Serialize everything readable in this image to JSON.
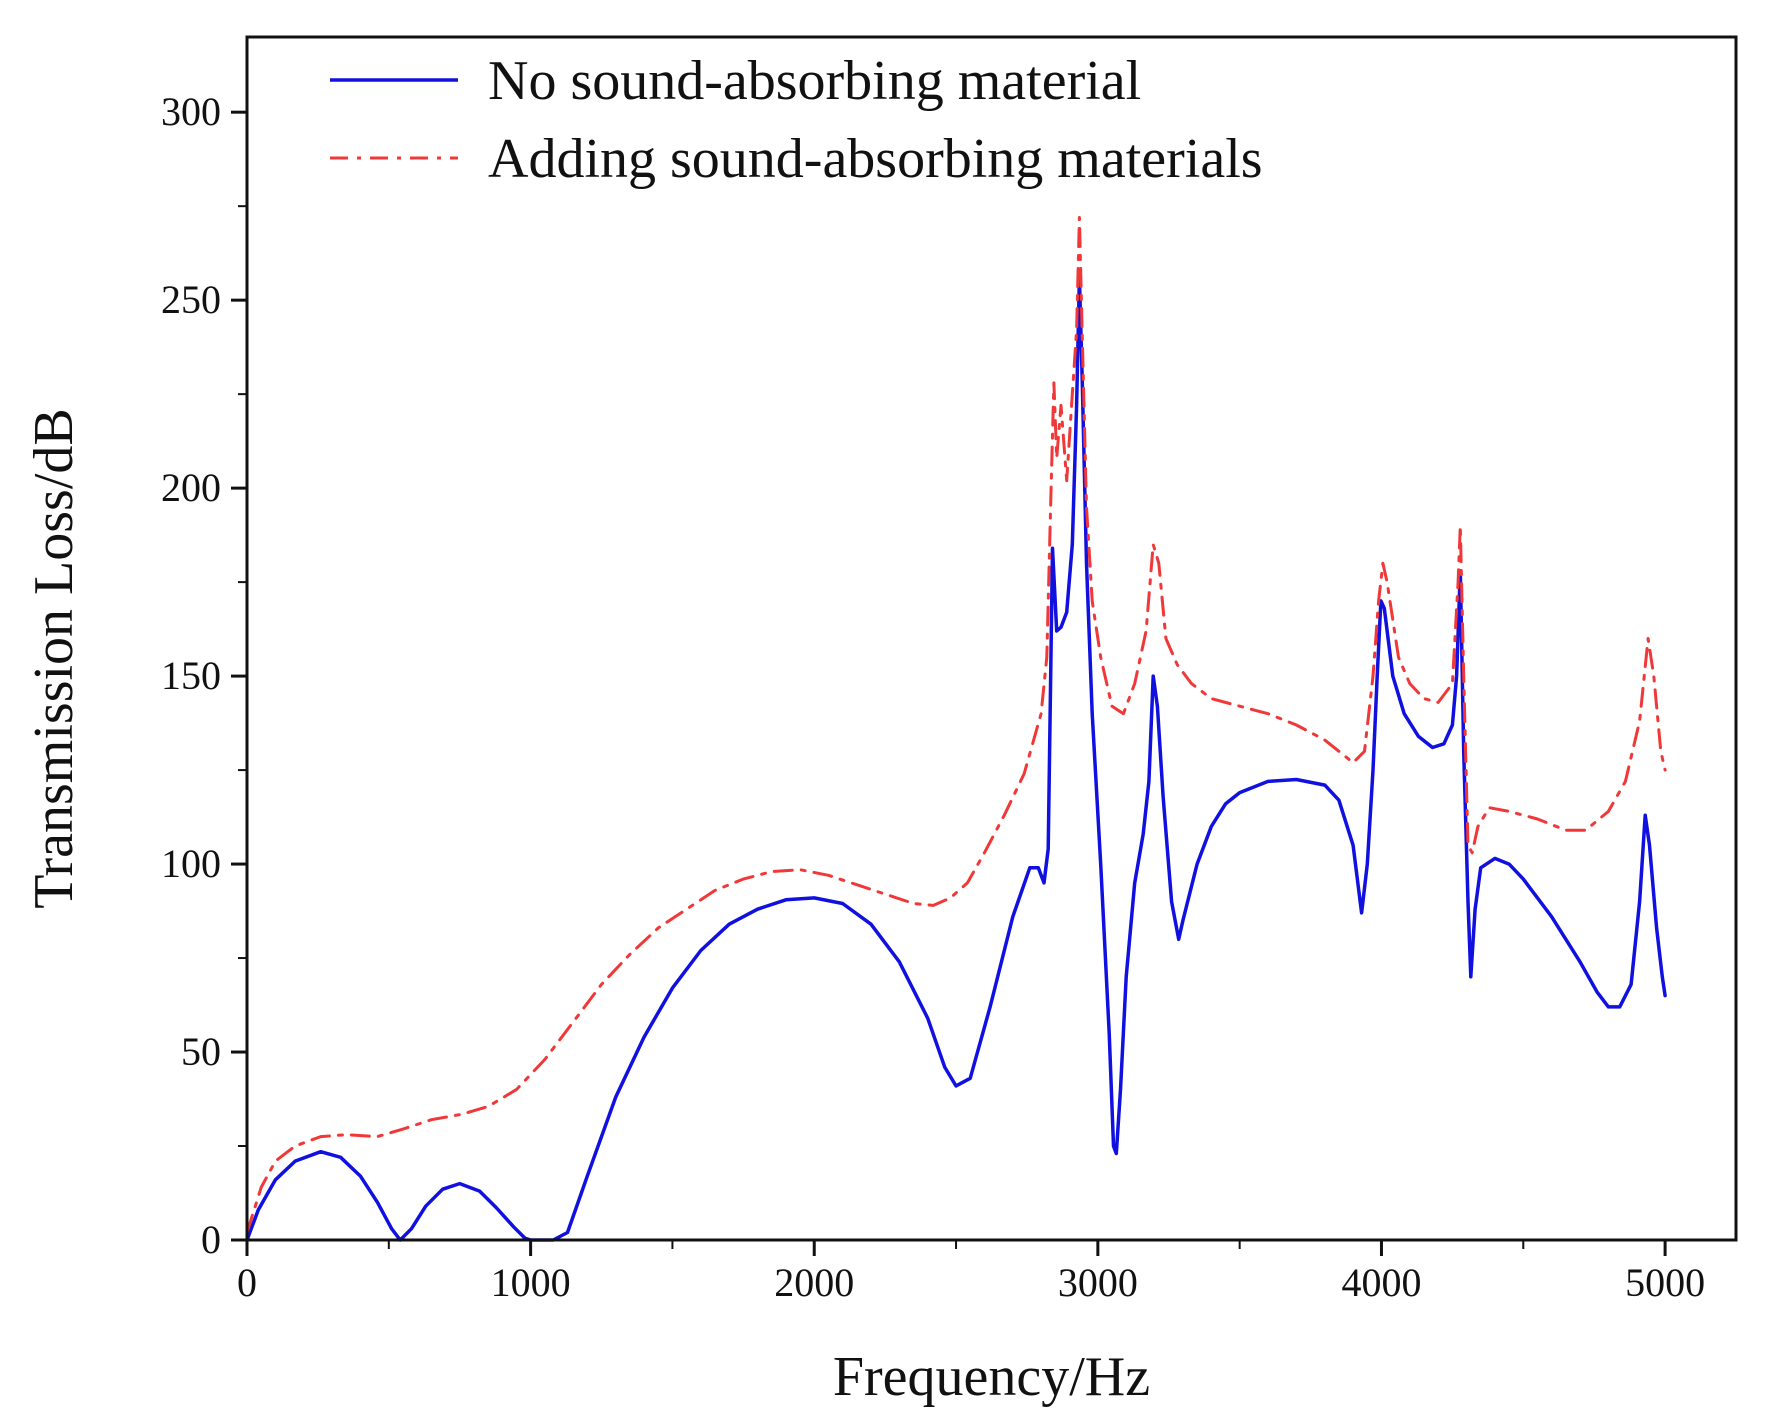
{
  "chart_data": {
    "type": "line",
    "title": "",
    "xlabel": "Frequency/Hz",
    "ylabel": "Transmission Loss/dB",
    "xlim": [
      0,
      5250
    ],
    "ylim": [
      0,
      320
    ],
    "xticks": [
      0,
      1000,
      2000,
      3000,
      4000,
      5000
    ],
    "yticks": [
      0,
      50,
      100,
      150,
      200,
      250,
      300
    ],
    "xtick_labels": [
      "0",
      "1000",
      "2000",
      "3000",
      "4000",
      "5000"
    ],
    "ytick_labels": [
      "0",
      "50",
      "100",
      "150",
      "200",
      "250",
      "300"
    ],
    "legend_position": "top-left",
    "series": [
      {
        "name": "No sound-absorbing material",
        "color": "#1010e0",
        "style": "solid",
        "points": [
          [
            0,
            0
          ],
          [
            40,
            8
          ],
          [
            100,
            16
          ],
          [
            170,
            21
          ],
          [
            260,
            23.5
          ],
          [
            330,
            22
          ],
          [
            400,
            17
          ],
          [
            460,
            10
          ],
          [
            510,
            3
          ],
          [
            540,
            0
          ],
          [
            580,
            3
          ],
          [
            630,
            9
          ],
          [
            690,
            13.5
          ],
          [
            750,
            15
          ],
          [
            820,
            13
          ],
          [
            880,
            8.5
          ],
          [
            940,
            3.5
          ],
          [
            980,
            0.5
          ],
          [
            1000,
            0
          ],
          [
            1080,
            0
          ],
          [
            1130,
            2
          ],
          [
            1200,
            17
          ],
          [
            1300,
            38
          ],
          [
            1400,
            54
          ],
          [
            1500,
            67
          ],
          [
            1600,
            77
          ],
          [
            1700,
            84
          ],
          [
            1800,
            88
          ],
          [
            1900,
            90.5
          ],
          [
            2000,
            91
          ],
          [
            2100,
            89.5
          ],
          [
            2200,
            84
          ],
          [
            2300,
            74
          ],
          [
            2400,
            59
          ],
          [
            2460,
            46
          ],
          [
            2500,
            41
          ],
          [
            2550,
            43
          ],
          [
            2620,
            62
          ],
          [
            2700,
            86
          ],
          [
            2760,
            99
          ],
          [
            2790,
            99
          ],
          [
            2810,
            95
          ],
          [
            2825,
            104
          ],
          [
            2840,
            184
          ],
          [
            2855,
            162
          ],
          [
            2870,
            163
          ],
          [
            2890,
            167
          ],
          [
            2910,
            185
          ],
          [
            2925,
            222
          ],
          [
            2935,
            256
          ],
          [
            2945,
            228
          ],
          [
            2960,
            180
          ],
          [
            2980,
            140
          ],
          [
            3010,
            100
          ],
          [
            3040,
            55
          ],
          [
            3055,
            25
          ],
          [
            3065,
            23
          ],
          [
            3080,
            40
          ],
          [
            3100,
            70
          ],
          [
            3130,
            95
          ],
          [
            3160,
            108
          ],
          [
            3180,
            122
          ],
          [
            3195,
            150
          ],
          [
            3210,
            142
          ],
          [
            3230,
            118
          ],
          [
            3260,
            90
          ],
          [
            3285,
            80
          ],
          [
            3300,
            85
          ],
          [
            3350,
            100
          ],
          [
            3400,
            110
          ],
          [
            3450,
            116
          ],
          [
            3500,
            119
          ],
          [
            3600,
            122
          ],
          [
            3700,
            122.5
          ],
          [
            3800,
            121
          ],
          [
            3850,
            117
          ],
          [
            3900,
            105
          ],
          [
            3930,
            87
          ],
          [
            3950,
            100
          ],
          [
            3970,
            125
          ],
          [
            3985,
            150
          ],
          [
            3998,
            170
          ],
          [
            4010,
            168
          ],
          [
            4040,
            150
          ],
          [
            4080,
            140
          ],
          [
            4130,
            134
          ],
          [
            4180,
            131
          ],
          [
            4220,
            132
          ],
          [
            4250,
            137
          ],
          [
            4265,
            150
          ],
          [
            4278,
            178
          ],
          [
            4290,
            130
          ],
          [
            4305,
            90
          ],
          [
            4315,
            70
          ],
          [
            4330,
            88
          ],
          [
            4350,
            99
          ],
          [
            4400,
            101.5
          ],
          [
            4450,
            100
          ],
          [
            4500,
            96
          ],
          [
            4600,
            86
          ],
          [
            4700,
            74
          ],
          [
            4760,
            66
          ],
          [
            4800,
            62
          ],
          [
            4840,
            62
          ],
          [
            4880,
            68
          ],
          [
            4910,
            90
          ],
          [
            4930,
            113
          ],
          [
            4945,
            105
          ],
          [
            4970,
            83
          ],
          [
            4990,
            70
          ],
          [
            5000,
            65
          ]
        ]
      },
      {
        "name": "Adding sound-absorbing materials",
        "color": "#f03838",
        "style": "dashdot",
        "points": [
          [
            0,
            2
          ],
          [
            50,
            14
          ],
          [
            100,
            21
          ],
          [
            170,
            25
          ],
          [
            260,
            27.5
          ],
          [
            350,
            28
          ],
          [
            460,
            27.5
          ],
          [
            550,
            29.5
          ],
          [
            650,
            32
          ],
          [
            760,
            33.5
          ],
          [
            850,
            35.5
          ],
          [
            950,
            40
          ],
          [
            1050,
            48
          ],
          [
            1150,
            58
          ],
          [
            1250,
            68
          ],
          [
            1350,
            76
          ],
          [
            1450,
            83
          ],
          [
            1550,
            88
          ],
          [
            1650,
            93
          ],
          [
            1750,
            96
          ],
          [
            1850,
            98
          ],
          [
            1950,
            98.5
          ],
          [
            2050,
            97
          ],
          [
            2150,
            94.5
          ],
          [
            2250,
            92
          ],
          [
            2350,
            89.5
          ],
          [
            2420,
            89
          ],
          [
            2480,
            91
          ],
          [
            2540,
            95
          ],
          [
            2600,
            103
          ],
          [
            2670,
            113
          ],
          [
            2740,
            124
          ],
          [
            2800,
            140
          ],
          [
            2820,
            155
          ],
          [
            2835,
            200
          ],
          [
            2845,
            228
          ],
          [
            2855,
            208
          ],
          [
            2870,
            222
          ],
          [
            2890,
            202
          ],
          [
            2910,
            225
          ],
          [
            2925,
            242
          ],
          [
            2935,
            272
          ],
          [
            2945,
            240
          ],
          [
            2960,
            195
          ],
          [
            2980,
            170
          ],
          [
            3010,
            155
          ],
          [
            3050,
            142
          ],
          [
            3090,
            140
          ],
          [
            3130,
            148
          ],
          [
            3170,
            162
          ],
          [
            3195,
            185
          ],
          [
            3215,
            180
          ],
          [
            3240,
            160
          ],
          [
            3280,
            153
          ],
          [
            3330,
            148
          ],
          [
            3400,
            144
          ],
          [
            3500,
            142
          ],
          [
            3600,
            140
          ],
          [
            3700,
            137
          ],
          [
            3800,
            133
          ],
          [
            3850,
            130
          ],
          [
            3900,
            127
          ],
          [
            3940,
            130
          ],
          [
            3970,
            150
          ],
          [
            3990,
            170
          ],
          [
            4005,
            180
          ],
          [
            4020,
            175
          ],
          [
            4060,
            155
          ],
          [
            4100,
            148
          ],
          [
            4150,
            144
          ],
          [
            4200,
            143
          ],
          [
            4250,
            148
          ],
          [
            4270,
            175
          ],
          [
            4278,
            190
          ],
          [
            4290,
            150
          ],
          [
            4305,
            105
          ],
          [
            4320,
            103
          ],
          [
            4340,
            110
          ],
          [
            4380,
            115
          ],
          [
            4450,
            114
          ],
          [
            4550,
            112
          ],
          [
            4650,
            109
          ],
          [
            4720,
            109
          ],
          [
            4800,
            114
          ],
          [
            4860,
            122
          ],
          [
            4910,
            138
          ],
          [
            4940,
            160
          ],
          [
            4960,
            150
          ],
          [
            4985,
            130
          ],
          [
            5000,
            125
          ]
        ]
      }
    ]
  }
}
